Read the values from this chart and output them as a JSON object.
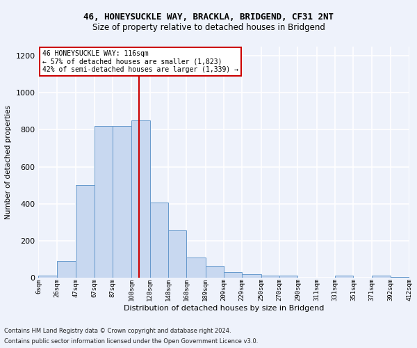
{
  "title_line1": "46, HONEYSUCKLE WAY, BRACKLA, BRIDGEND, CF31 2NT",
  "title_line2": "Size of property relative to detached houses in Bridgend",
  "xlabel": "Distribution of detached houses by size in Bridgend",
  "ylabel": "Number of detached properties",
  "footer_line1": "Contains HM Land Registry data © Crown copyright and database right 2024.",
  "footer_line2": "Contains public sector information licensed under the Open Government Licence v3.0.",
  "annotation_line1": "46 HONEYSUCKLE WAY: 116sqm",
  "annotation_line2": "← 57% of detached houses are smaller (1,823)",
  "annotation_line3": "42% of semi-detached houses are larger (1,339) →",
  "property_size": 116,
  "bin_edges": [
    6,
    26,
    47,
    67,
    87,
    108,
    128,
    148,
    168,
    189,
    209,
    229,
    250,
    270,
    290,
    311,
    331,
    351,
    371,
    392,
    412
  ],
  "bar_heights": [
    10,
    90,
    500,
    820,
    820,
    850,
    405,
    255,
    110,
    65,
    30,
    18,
    10,
    10,
    0,
    0,
    10,
    0,
    10,
    5
  ],
  "bar_color": "#c8d8f0",
  "bar_edge_color": "#6699cc",
  "vline_color": "#cc0000",
  "vline_x": 116,
  "ylim": [
    0,
    1250
  ],
  "yticks": [
    0,
    200,
    400,
    600,
    800,
    1000,
    1200
  ],
  "annotation_box_color": "#ffffff",
  "annotation_box_edge": "#cc0000",
  "background_color": "#eef2fb",
  "grid_color": "#ffffff"
}
